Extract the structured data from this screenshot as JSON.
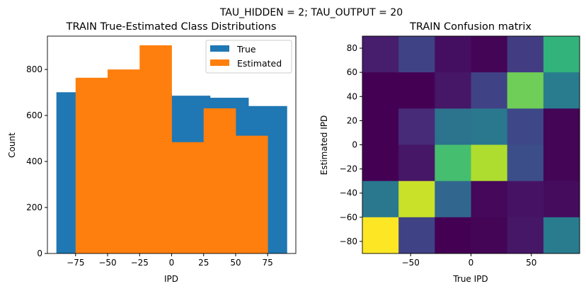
{
  "suptitle": "TAU_HIDDEN = 2; TAU_OUTPUT = 20",
  "chart_data": [
    {
      "type": "bar",
      "title": "TRAIN True-Estimated Class Distributions",
      "xlabel": "IPD",
      "ylabel": "Count",
      "xlim": [
        -97,
        97
      ],
      "ylim": [
        0,
        945
      ],
      "xticks": [
        -75,
        -50,
        -25,
        0,
        25,
        50,
        75
      ],
      "xtick_labels": [
        "−75",
        "−50",
        "−25",
        "0",
        "25",
        "50",
        "75"
      ],
      "yticks": [
        0,
        200,
        400,
        600,
        800
      ],
      "yticks_labels": [
        "0",
        "200",
        "400",
        "600",
        "800"
      ],
      "legend_position": "top-right",
      "series": [
        {
          "name": "True",
          "color": "#1f77b4",
          "bin_edges": [
            -90,
            -60,
            -30,
            0,
            30,
            60,
            90
          ],
          "values": [
            701,
            695,
            695,
            686,
            677,
            641
          ]
        },
        {
          "name": "Estimated",
          "color": "#ff7f0e",
          "bin_edges": [
            -75,
            -50,
            -25,
            0,
            25,
            50,
            75
          ],
          "values": [
            764,
            800,
            905,
            484,
            631,
            512
          ]
        }
      ]
    },
    {
      "type": "heatmap",
      "title": "TRAIN Confusion matrix",
      "xlabel": "True IPD",
      "ylabel": "Estimated IPD",
      "extent": [
        -90,
        90,
        -90,
        90
      ],
      "xticks": [
        -50,
        0,
        50
      ],
      "xtick_labels": [
        "−50",
        "0",
        "50"
      ],
      "yticks": [
        -80,
        -60,
        -40,
        -20,
        0,
        20,
        40,
        60,
        80
      ],
      "ytick_labels": [
        "−80",
        "−60",
        "−40",
        "−20",
        "0",
        "20",
        "40",
        "60",
        "80"
      ],
      "colormap": "viridis",
      "rows_top_to_bottom": [
        [
          0.08,
          0.2,
          0.04,
          0.01,
          0.18,
          0.65
        ],
        [
          0.0,
          0.0,
          0.06,
          0.2,
          0.78,
          0.42
        ],
        [
          0.0,
          0.12,
          0.38,
          0.4,
          0.22,
          0.01
        ],
        [
          0.0,
          0.06,
          0.7,
          0.88,
          0.24,
          0.01
        ],
        [
          0.4,
          0.92,
          0.33,
          0.02,
          0.05,
          0.03
        ],
        [
          1.0,
          0.2,
          0.0,
          0.01,
          0.06,
          0.42
        ]
      ]
    }
  ]
}
